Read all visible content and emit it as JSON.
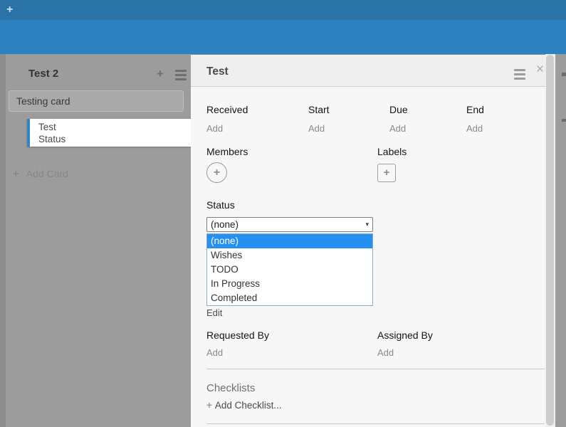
{
  "colors": {
    "topbar": "#2a73a7",
    "subbar": "#2c82bf",
    "board_bg": "#8d8d8d",
    "list_bg": "#9c9c9c",
    "selected_card_accent": "#2e86c8",
    "option_highlight": "#2690f2",
    "panel_bg": "#f7f7f7"
  },
  "topbar": {
    "add_icon": "+"
  },
  "list": {
    "title": "Test 2",
    "add_icon": "+",
    "menu_icon": "hamburger",
    "cards": [
      {
        "title": "Testing card"
      },
      {
        "lines": [
          "Test",
          "Status"
        ],
        "selected": true
      }
    ],
    "add_card": {
      "icon": "+",
      "label": "Add Card"
    }
  },
  "card_detail": {
    "title": "Test",
    "menu_icon": "hamburger",
    "close_icon": "×",
    "dates": [
      {
        "label": "Received",
        "action": "Add"
      },
      {
        "label": "Start",
        "action": "Add"
      },
      {
        "label": "Due",
        "action": "Add"
      },
      {
        "label": "End",
        "action": "Add"
      }
    ],
    "members": {
      "label": "Members",
      "add_icon": "+"
    },
    "labels": {
      "label": "Labels",
      "add_icon": "+"
    },
    "status": {
      "label": "Status",
      "selected_value": "(none)",
      "dropdown_icon": "▾",
      "selected_index": 0,
      "options": [
        "(none)",
        "Wishes",
        "TODO",
        "In Progress",
        "Completed"
      ],
      "edit_label": "Edit"
    },
    "requested_by": {
      "label": "Requested By",
      "action": "Add"
    },
    "assigned_by": {
      "label": "Assigned By",
      "action": "Add"
    },
    "checklists": {
      "label": "Checklists",
      "add_icon": "+",
      "add_label": "Add Checklist..."
    }
  }
}
